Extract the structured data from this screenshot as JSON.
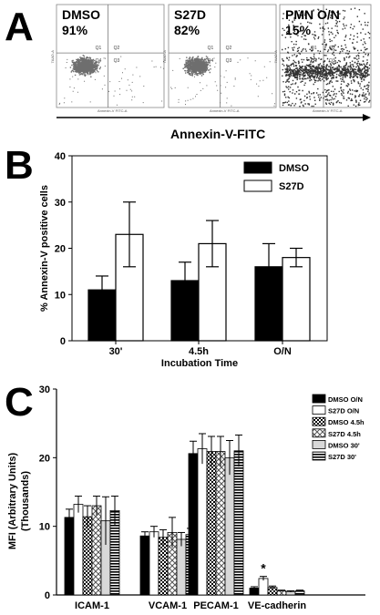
{
  "panel_a": {
    "letter": "A",
    "plots": [
      {
        "label": "DMSO",
        "percent": "91%",
        "q_labels": [
          "Q1",
          "Q2",
          "Q4",
          "Q3"
        ],
        "x_axis": "Annexin-V FITC-A",
        "y_axis": "7AAD-A"
      },
      {
        "label": "S27D",
        "percent": "82%",
        "q_labels": [
          "Q1",
          "Q2",
          "Q4",
          "Q3"
        ],
        "x_axis": "Annexin-V FITC-A",
        "y_axis": "7AAD-A"
      },
      {
        "label": "PMN O/N",
        "percent": "15%",
        "q_labels": [
          "Q1",
          "Q2",
          "Q4",
          "Q3"
        ],
        "x_axis": "Annexin-V FITC-A",
        "y_axis": "7AAD-A"
      }
    ],
    "axis_label": "Annexin-V-FITC"
  },
  "chart_data": [
    {
      "type": "bar",
      "panel": "B",
      "ylabel": "% Annexin-V positive cells",
      "xlabel": "Incubation Time",
      "categories": [
        "30'",
        "4.5h",
        "O/N"
      ],
      "ylim": [
        0,
        40
      ],
      "yticks": [
        0,
        10,
        20,
        30,
        40
      ],
      "legend_position": "top-right",
      "series": [
        {
          "name": "DMSO",
          "color": "#000000",
          "values": [
            11,
            13,
            16
          ],
          "errors": [
            3,
            4,
            5
          ]
        },
        {
          "name": "S27D",
          "color": "#ffffff",
          "values": [
            23,
            21,
            18
          ],
          "errors": [
            7,
            5,
            2
          ]
        }
      ]
    },
    {
      "type": "bar",
      "panel": "C",
      "ylabel": "MFI (Arbitrary Units)",
      "ylabel2": "(Thousands)",
      "categories": [
        "ICAM-1",
        "VCAM-1",
        "PECAM-1",
        "VE-cadherin"
      ],
      "ylim": [
        0,
        30
      ],
      "yticks": [
        0,
        10,
        20,
        30
      ],
      "legend_position": "top-right",
      "annotation": "*",
      "series": [
        {
          "name": "DMSO O/N",
          "pattern": "solid-black",
          "values": [
            11.3,
            8.6,
            20.6,
            1.0
          ],
          "errors": [
            1.2,
            0.6,
            1.8,
            0.2
          ]
        },
        {
          "name": "S27D O/N",
          "pattern": "white",
          "values": [
            13.2,
            9.2,
            21.3,
            2.4
          ],
          "errors": [
            1.2,
            0.8,
            2.2,
            0.3
          ]
        },
        {
          "name": "DMSO 4.5h",
          "pattern": "dots",
          "values": [
            11.4,
            8.4,
            20.9,
            1.1
          ],
          "errors": [
            1.6,
            1.1,
            2.2,
            0.2
          ]
        },
        {
          "name": "S27D 4.5h",
          "pattern": "diamond",
          "values": [
            13.0,
            9.1,
            20.9,
            0.6
          ],
          "errors": [
            1.4,
            2.2,
            2.2,
            0.1
          ]
        },
        {
          "name": "DMSO 30'",
          "pattern": "light-gray",
          "values": [
            10.8,
            8.1,
            20.0,
            0.5
          ],
          "errors": [
            3.5,
            1.0,
            2.5,
            0.1
          ]
        },
        {
          "name": "S27D 30'",
          "pattern": "hlines",
          "values": [
            12.3,
            8.8,
            21.0,
            0.6
          ],
          "errors": [
            2.1,
            0.9,
            2.3,
            0.1
          ]
        }
      ]
    }
  ]
}
